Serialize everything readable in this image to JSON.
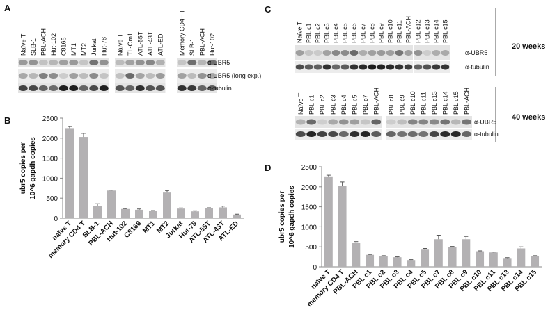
{
  "panel_labels": [
    "A",
    "B",
    "C",
    "D"
  ],
  "blot_A": {
    "groups": [
      [
        "Naïve T",
        "SLB-1",
        "PBL-ACH",
        "Hut-102",
        "C8166",
        "MT1",
        "MT2",
        "Jurkat",
        "Hut-78"
      ],
      [
        "Naïve T",
        "TL-Om1",
        "ATL-55T",
        "ATL-43T",
        "ATL-ED"
      ],
      [
        "Memory CD4+ T",
        "SLB-1",
        "PBL-ACH",
        "Hut-102"
      ]
    ],
    "rows": [
      "α-UBR5",
      "α-UBR5 (long exp.)",
      "α-tubulin"
    ]
  },
  "blot_C": {
    "top": {
      "groups": [
        [
          "Naïve T",
          "PBL c1",
          "PBL c2",
          "PBL c3",
          "PBL c4",
          "PBL c5",
          "PBL c6",
          "PBL c7",
          "PBL c8",
          "PBL c9",
          "PBL c10",
          "PBL c11",
          "PBL-ACH"
        ],
        [
          "PBL c12",
          "PBL c13",
          "PBL c14",
          "PBL c15"
        ]
      ],
      "rows": [
        "α-UBR5",
        "α-tubulin"
      ],
      "time": "20 weeks"
    },
    "bottom": {
      "groups": [
        [
          "Naïve T",
          "PBL c1",
          "PBL c2",
          "PBL c3",
          "PBL c4",
          "PBL c5",
          "PBL c7",
          "PBL-ACH"
        ],
        [
          "PBL c8",
          "PBL c9",
          "PBL c10",
          "PBL c11",
          "PBL c13",
          "PBL c14",
          "PBL c15",
          "PBL-ACH"
        ]
      ],
      "rows": [
        "α-UBR5",
        "α-tubulin"
      ],
      "time": "40 weeks"
    }
  },
  "chart_data": [
    {
      "type": "bar",
      "ylabel": [
        "ubr5 copies per",
        "10^6 gapdh copies"
      ],
      "categories": [
        "naïve T",
        "memory CD4 T",
        "SLB-1",
        "PBL-ACH",
        "Hut-102",
        "C8166",
        "MT1",
        "MT2",
        "Jurkat",
        "Hut-78",
        "ATL-55T",
        "ATL-43T",
        "ATL-ED"
      ],
      "values": [
        2250,
        2030,
        310,
        690,
        230,
        210,
        180,
        640,
        240,
        170,
        250,
        270,
        90
      ],
      "errors": [
        40,
        90,
        50,
        10,
        10,
        20,
        10,
        50,
        15,
        15,
        10,
        30,
        10
      ],
      "color": "#b3b1b3",
      "ylim": [
        0,
        2500
      ],
      "yticks": [
        0,
        500,
        1000,
        1500,
        2000,
        2500
      ]
    },
    {
      "type": "bar",
      "ylabel": [
        "ubr5 copies per",
        "10^6 gapdh copies"
      ],
      "categories": [
        "naïve T",
        "memory CD4 T",
        "PBL-ACH",
        "PBL c1",
        "PBL c2",
        "PBL c3",
        "PBL c4",
        "PBL c5",
        "PBL c7",
        "PBL c8",
        "PBL c9",
        "PBL c10",
        "PBL c11",
        "PBL c13",
        "PBL c14",
        "PBL c15"
      ],
      "values": [
        2260,
        2020,
        600,
        300,
        260,
        240,
        170,
        430,
        690,
        500,
        690,
        390,
        360,
        220,
        460,
        270
      ],
      "errors": [
        30,
        100,
        30,
        10,
        20,
        10,
        10,
        30,
        100,
        10,
        70,
        10,
        10,
        10,
        40,
        10
      ],
      "color": "#b3b1b3",
      "ylim": [
        0,
        2500
      ],
      "yticks": [
        0,
        500,
        1000,
        1500,
        2000,
        2500
      ]
    }
  ]
}
